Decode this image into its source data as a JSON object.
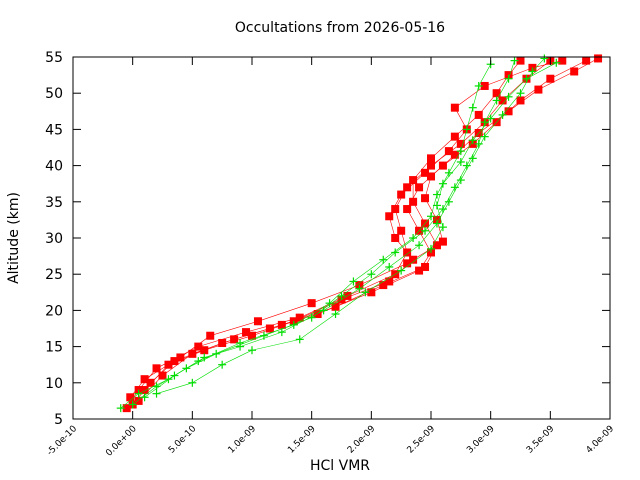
{
  "chart_data": {
    "type": "scatter",
    "title": "Occultations from 2026-05-16",
    "xlabel": "HCl VMR",
    "ylabel": "Altitude (km)",
    "xlim": [
      -5e-10,
      4e-09
    ],
    "ylim": [
      5,
      55
    ],
    "x_ticks": [
      -5e-10,
      0,
      5e-10,
      1e-09,
      1.5e-09,
      2e-09,
      2.5e-09,
      3e-09,
      3.5e-09,
      4e-09
    ],
    "x_tick_labels": [
      "-5.0e-10",
      "0.0e+00",
      "5.0e-10",
      "1.0e-09",
      "1.5e-09",
      "2.0e-09",
      "2.5e-09",
      "3.0e-09",
      "3.5e-09",
      "4.0e-09"
    ],
    "y_ticks": [
      5,
      10,
      15,
      20,
      25,
      30,
      35,
      40,
      45,
      50,
      55
    ],
    "y_tick_labels": [
      "5",
      "10",
      "15",
      "20",
      "25",
      "30",
      "35",
      "40",
      "45",
      "50",
      "55"
    ],
    "grid": false,
    "legend": "none",
    "series": [
      {
        "marker": "square",
        "color": "#ff0000",
        "profiles": [
          [
            [
              -5e-11,
              6.5
            ],
            [
              5e-11,
              9
            ],
            [
              2e-10,
              12
            ],
            [
              5.5e-10,
              15
            ],
            [
              9.5e-10,
              17
            ],
            [
              1.4e-09,
              19
            ],
            [
              1.8e-09,
              22
            ],
            [
              2.2e-09,
              25
            ],
            [
              2.3e-09,
              28
            ],
            [
              2.25e-09,
              31
            ],
            [
              2.2e-09,
              34
            ],
            [
              2.3e-09,
              37
            ],
            [
              2.5e-09,
              40
            ],
            [
              2.75e-09,
              43
            ],
            [
              2.95e-09,
              46
            ],
            [
              3.1e-09,
              49
            ],
            [
              3.3e-09,
              52
            ],
            [
              3.5e-09,
              54.5
            ]
          ],
          [
            [
              0.0,
              7
            ],
            [
              1.5e-10,
              10
            ],
            [
              3.5e-10,
              13
            ],
            [
              7.5e-10,
              15.5
            ],
            [
              1.15e-09,
              17.5
            ],
            [
              1.55e-09,
              19.5
            ],
            [
              2e-09,
              22.5
            ],
            [
              2.4e-09,
              25.5
            ],
            [
              2.5e-09,
              28
            ],
            [
              2.4e-09,
              31
            ],
            [
              2.3e-09,
              34
            ],
            [
              2.4e-09,
              37
            ],
            [
              2.6e-09,
              40
            ],
            [
              2.85e-09,
              43
            ],
            [
              3.05e-09,
              46
            ],
            [
              3.25e-09,
              49
            ],
            [
              3.5e-09,
              52
            ],
            [
              3.8e-09,
              54.5
            ]
          ],
          [
            [
              5e-11,
              7.5
            ],
            [
              2.5e-10,
              11
            ],
            [
              5e-10,
              14
            ],
            [
              8.5e-10,
              16
            ],
            [
              1.25e-09,
              18
            ],
            [
              1.7e-09,
              20.5
            ],
            [
              2.1e-09,
              23.5
            ],
            [
              2.45e-09,
              26
            ],
            [
              2.55e-09,
              29
            ],
            [
              2.45e-09,
              32
            ],
            [
              2.35e-09,
              35
            ],
            [
              2.35e-09,
              38
            ],
            [
              2.5e-09,
              41
            ],
            [
              2.7e-09,
              44
            ],
            [
              2.9e-09,
              47
            ],
            [
              3.05e-09,
              50
            ],
            [
              3.15e-09,
              52.5
            ],
            [
              3.25e-09,
              54.5
            ]
          ],
          [
            [
              -2e-11,
              8
            ],
            [
              1e-10,
              10.5
            ],
            [
              4e-10,
              13.5
            ],
            [
              6.5e-10,
              16.5
            ],
            [
              1.05e-09,
              18.5
            ],
            [
              1.5e-09,
              21
            ],
            [
              1.9e-09,
              23.5
            ],
            [
              2.3e-09,
              26.5
            ],
            [
              2.6e-09,
              29.5
            ],
            [
              2.55e-09,
              32.5
            ],
            [
              2.45e-09,
              35.5
            ],
            [
              2.5e-09,
              38.5
            ],
            [
              2.7e-09,
              41.5
            ],
            [
              2.9e-09,
              44.5
            ],
            [
              3.15e-09,
              47.5
            ],
            [
              3.4e-09,
              50.5
            ],
            [
              3.7e-09,
              53
            ],
            [
              3.9e-09,
              54.8
            ]
          ],
          [
            [
              1e-10,
              9
            ],
            [
              3e-10,
              12.5
            ],
            [
              6e-10,
              14.5
            ],
            [
              1e-09,
              16.5
            ],
            [
              1.35e-09,
              18.5
            ],
            [
              1.75e-09,
              21.5
            ],
            [
              2.15e-09,
              24
            ],
            [
              2.35e-09,
              27
            ],
            [
              2.2e-09,
              30
            ],
            [
              2.15e-09,
              33
            ],
            [
              2.25e-09,
              36
            ],
            [
              2.45e-09,
              39
            ],
            [
              2.65e-09,
              42
            ],
            [
              2.8e-09,
              45
            ],
            [
              2.7e-09,
              48
            ],
            [
              2.95e-09,
              51
            ],
            [
              3.35e-09,
              53.5
            ],
            [
              3.6e-09,
              54.5
            ]
          ]
        ]
      },
      {
        "marker": "plus",
        "color": "#00dd00",
        "profiles": [
          [
            [
              -1e-10,
              6.5
            ],
            [
              5e-11,
              8.5
            ],
            [
              3e-10,
              10.5
            ],
            [
              5.5e-10,
              13
            ],
            [
              9e-10,
              15.5
            ],
            [
              1.35e-09,
              18
            ],
            [
              1.65e-09,
              21
            ],
            [
              1.85e-09,
              24
            ],
            [
              2.1e-09,
              27
            ],
            [
              2.35e-09,
              30
            ],
            [
              2.5e-09,
              33
            ],
            [
              2.55e-09,
              36
            ],
            [
              2.65e-09,
              39
            ],
            [
              2.75e-09,
              42
            ],
            [
              2.8e-09,
              45
            ],
            [
              2.85e-09,
              48
            ],
            [
              2.9e-09,
              51
            ],
            [
              3e-09,
              54
            ]
          ],
          [
            [
              0.0,
              7
            ],
            [
              2e-10,
              9.5
            ],
            [
              4.5e-10,
              12
            ],
            [
              7e-10,
              14
            ],
            [
              1.1e-09,
              16.5
            ],
            [
              1.5e-09,
              19
            ],
            [
              1.75e-09,
              22
            ],
            [
              2e-09,
              25
            ],
            [
              2.2e-09,
              28
            ],
            [
              2.45e-09,
              31
            ],
            [
              2.6e-09,
              34
            ],
            [
              2.7e-09,
              37
            ],
            [
              2.8e-09,
              40
            ],
            [
              2.9e-09,
              43
            ],
            [
              2.95e-09,
              46
            ],
            [
              3.05e-09,
              49
            ],
            [
              3.15e-09,
              52
            ],
            [
              3.2e-09,
              54.5
            ]
          ],
          [
            [
              1e-10,
              8
            ],
            [
              3.5e-10,
              11
            ],
            [
              6e-10,
              13.5
            ],
            [
              9e-10,
              15
            ],
            [
              1.25e-09,
              17
            ],
            [
              1.6e-09,
              20
            ],
            [
              1.9e-09,
              23
            ],
            [
              2.15e-09,
              26
            ],
            [
              2.4e-09,
              29
            ],
            [
              2.55e-09,
              32
            ],
            [
              2.65e-09,
              35
            ],
            [
              2.75e-09,
              38
            ],
            [
              2.85e-09,
              41
            ],
            [
              2.95e-09,
              44
            ],
            [
              3.1e-09,
              47
            ],
            [
              3.25e-09,
              50
            ],
            [
              3.35e-09,
              53
            ],
            [
              3.45e-09,
              54.8
            ]
          ],
          [
            [
              2e-10,
              8.5
            ],
            [
              5e-10,
              10
            ],
            [
              7.5e-10,
              12.5
            ],
            [
              1e-09,
              14.5
            ],
            [
              1.4e-09,
              16
            ],
            [
              1.7e-09,
              19.5
            ],
            [
              1.95e-09,
              22.5
            ],
            [
              2.25e-09,
              25.5
            ],
            [
              2.5e-09,
              28.5
            ],
            [
              2.6e-09,
              31.5
            ],
            [
              2.55e-09,
              34.5
            ],
            [
              2.6e-09,
              37.5
            ],
            [
              2.75e-09,
              40.5
            ],
            [
              2.85e-09,
              43.5
            ],
            [
              3e-09,
              46.5
            ],
            [
              3.15e-09,
              49.5
            ],
            [
              3.3e-09,
              52
            ],
            [
              3.55e-09,
              54.2
            ]
          ]
        ]
      }
    ]
  }
}
